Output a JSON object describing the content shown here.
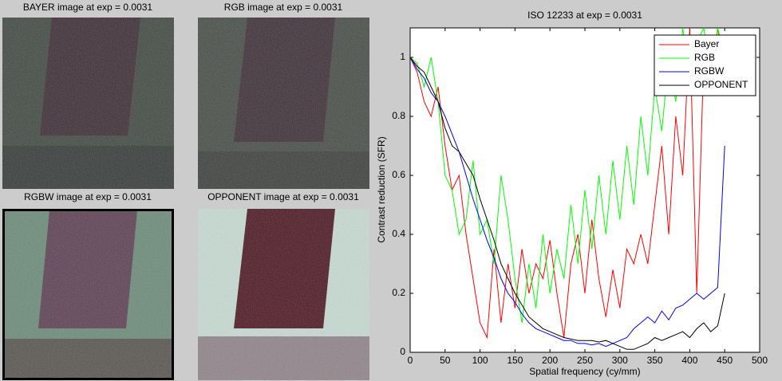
{
  "images": [
    {
      "title": "BAYER image at exp = 0.0031"
    },
    {
      "title": "RGB image at exp = 0.0031"
    },
    {
      "title": "RGBW image at exp = 0.0031"
    },
    {
      "title": "OPPONENT image at exp = 0.0031"
    }
  ],
  "chart_data": {
    "type": "line",
    "title": "ISO 12233 at exp = 0.0031",
    "x_label": "Spatial frequency (cy/mm)",
    "y_label": "Contrast reduction (SFR)",
    "x": [
      0,
      10,
      20,
      30,
      40,
      50,
      60,
      70,
      80,
      90,
      100,
      110,
      120,
      130,
      140,
      150,
      160,
      170,
      180,
      190,
      200,
      210,
      220,
      230,
      240,
      250,
      260,
      270,
      280,
      290,
      300,
      310,
      320,
      330,
      340,
      350,
      360,
      370,
      380,
      390,
      400,
      410,
      420,
      430,
      440,
      450
    ],
    "series": [
      {
        "name": "Bayer",
        "color": "#ff0000",
        "values": [
          1.0,
          0.95,
          0.85,
          0.8,
          0.9,
          0.7,
          0.55,
          0.6,
          0.4,
          0.25,
          0.1,
          0.05,
          0.35,
          0.1,
          0.3,
          0.15,
          0.35,
          0.2,
          0.3,
          0.25,
          0.38,
          0.2,
          0.05,
          0.3,
          0.4,
          0.2,
          0.45,
          0.25,
          0.12,
          0.28,
          0.15,
          0.35,
          0.3,
          0.4,
          0.3,
          0.5,
          0.7,
          0.4,
          0.8,
          0.6,
          1.1,
          0.2,
          1.0,
          0.9,
          1.1,
          0.95
        ]
      },
      {
        "name": "RGB",
        "color": "#00ff00",
        "values": [
          1.0,
          0.98,
          0.9,
          1.0,
          0.85,
          0.6,
          0.55,
          0.4,
          0.45,
          0.65,
          0.4,
          0.45,
          0.3,
          0.6,
          0.45,
          0.25,
          0.1,
          0.3,
          0.15,
          0.4,
          0.2,
          0.35,
          0.25,
          0.5,
          0.3,
          0.55,
          0.35,
          0.6,
          0.4,
          0.65,
          0.45,
          0.7,
          0.5,
          0.8,
          0.6,
          0.9,
          0.75,
          1.0,
          0.85,
          1.1,
          0.9,
          1.05,
          1.1,
          0.95,
          1.1,
          1.0
        ]
      },
      {
        "name": "RGBW",
        "color": "#0000ff",
        "values": [
          1.0,
          0.96,
          0.93,
          0.88,
          0.85,
          0.8,
          0.74,
          0.68,
          0.6,
          0.52,
          0.45,
          0.38,
          0.32,
          0.25,
          0.2,
          0.17,
          0.13,
          0.1,
          0.08,
          0.07,
          0.06,
          0.05,
          0.04,
          0.04,
          0.03,
          0.03,
          0.025,
          0.03,
          0.02,
          0.03,
          0.04,
          0.05,
          0.08,
          0.1,
          0.12,
          0.1,
          0.14,
          0.11,
          0.15,
          0.16,
          0.18,
          0.2,
          0.18,
          0.2,
          0.22,
          0.7
        ]
      },
      {
        "name": "OPPONENT",
        "color": "#000000",
        "values": [
          1.0,
          0.97,
          0.95,
          0.9,
          0.85,
          0.76,
          0.7,
          0.68,
          0.64,
          0.6,
          0.52,
          0.45,
          0.38,
          0.3,
          0.25,
          0.2,
          0.16,
          0.12,
          0.1,
          0.08,
          0.07,
          0.06,
          0.05,
          0.045,
          0.04,
          0.04,
          0.04,
          0.035,
          0.04,
          0.03,
          0.02,
          0.01,
          0.01,
          0.02,
          0.03,
          0.05,
          0.04,
          0.05,
          0.06,
          0.07,
          0.05,
          0.08,
          0.1,
          0.07,
          0.09,
          0.2
        ]
      }
    ],
    "xlim": [
      0,
      500
    ],
    "xticks": [
      0,
      50,
      100,
      150,
      200,
      250,
      300,
      350,
      400,
      450,
      500
    ],
    "ylim": [
      0,
      1.1
    ],
    "yticks": [
      0,
      0.2,
      0.4,
      0.6,
      0.8,
      1
    ],
    "legend": "upper right"
  }
}
